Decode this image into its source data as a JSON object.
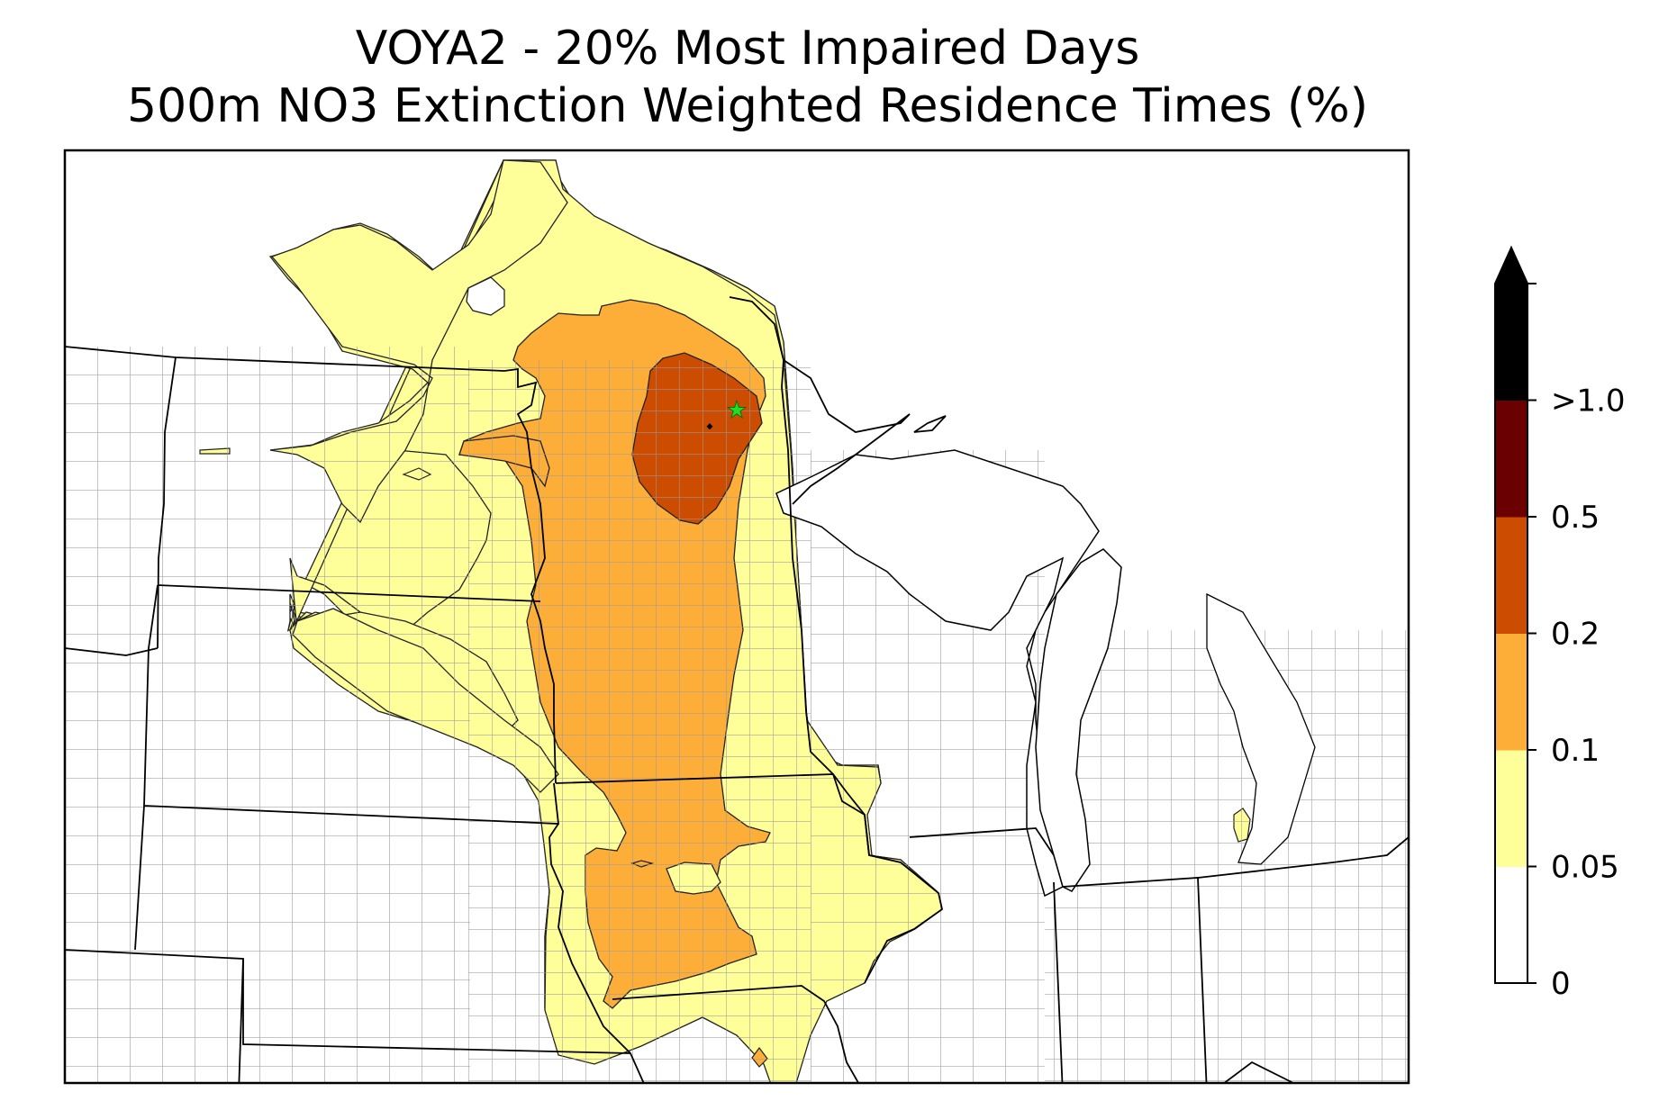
{
  "title": {
    "line1": "VOYA2 - 20% Most Impaired Days",
    "line2": "500m NO3 Extinction Weighted Residence Times (%)"
  },
  "colorbar": {
    "extend": "max",
    "bins": [
      {
        "label": "0",
        "color": "#ffffff"
      },
      {
        "label": "0.05",
        "color": "#ffff99"
      },
      {
        "label": "0.1",
        "color": "#fdae38"
      },
      {
        "label": "0.2",
        "color": "#cc4c02"
      },
      {
        "label": "0.5",
        "color": "#6b0000"
      },
      {
        "label": ">1.0",
        "color": "#000000"
      }
    ]
  },
  "colors": {
    "lt005": "#ffffff",
    "c005": "#ffff99",
    "c01": "#fdae38",
    "c02": "#cc4c02",
    "state_border": "#000000",
    "county_border": "#9a9a9a",
    "receptor_marker": "#22dd22"
  },
  "map": {
    "receptor_site": "VOYA2",
    "receptor_icon": "star-icon"
  }
}
